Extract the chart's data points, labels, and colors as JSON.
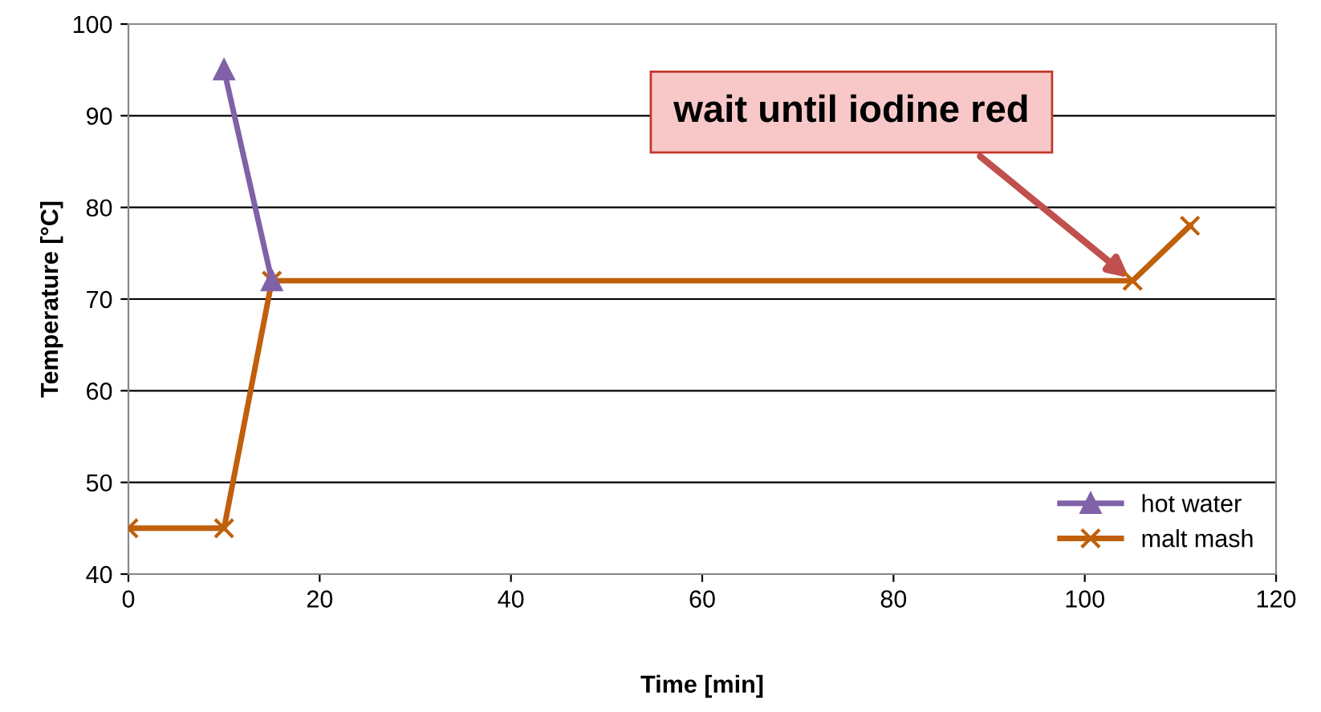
{
  "chart_data": {
    "type": "line",
    "xlabel": "Time [min]",
    "ylabel": "Temperature [°C]",
    "series": [
      {
        "name": "hot water",
        "color": "#7f62a8",
        "marker": "triangle",
        "x": [
          10,
          15
        ],
        "values": [
          95,
          72
        ]
      },
      {
        "name": "malt mash",
        "color": "#c0600c",
        "marker": "cross",
        "x": [
          0,
          10,
          15,
          105,
          111
        ],
        "values": [
          45,
          45,
          72,
          72,
          78
        ]
      }
    ],
    "xlim": [
      0,
      120
    ],
    "xticks": [
      0,
      20,
      40,
      60,
      80,
      100,
      120
    ],
    "ylim": [
      40,
      100
    ],
    "yticks": [
      40,
      50,
      60,
      70,
      80,
      90,
      100
    ],
    "grid": "y",
    "legend": "bottom right",
    "line_style": "solid",
    "annotations": [
      {
        "text": "wait until iodine red",
        "x": 105,
        "y": 72
      }
    ]
  }
}
